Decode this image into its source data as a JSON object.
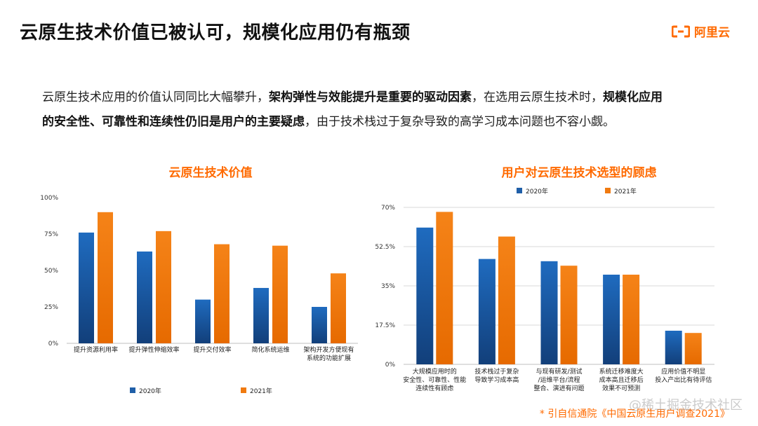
{
  "header": {
    "title": "云原生技术价值已被认可，规模化应用仍有瓶颈",
    "logo_text": "阿里云"
  },
  "intro": {
    "part1": "云原生技术应用的价值认同同比大幅攀升，",
    "bold1": "架构弹性与效能提升是重要的驱动因素",
    "part2": "，在选用云原生技术时，",
    "bold2": "规模化应用的安全性、可靠性和连续性仍旧是用户的主要疑虑",
    "part3": "，由于技术栈过于复杂导致的高学习成本问题也不容小觑。"
  },
  "colors": {
    "series2020": "#1f5fa8",
    "series2021": "#f07a10",
    "accent": "#ff6a00"
  },
  "chart_data": [
    {
      "type": "bar",
      "title": "云原生技术价值",
      "categories": [
        [
          "提升资源利用率"
        ],
        [
          "提升弹性伸缩效率"
        ],
        [
          "提升交付效率"
        ],
        [
          "简化系统运维"
        ],
        [
          "架构开发方便现有",
          "系统的功能扩展"
        ]
      ],
      "series": [
        {
          "name": "2020年",
          "values": [
            76,
            63,
            30,
            38,
            25
          ]
        },
        {
          "name": "2021年",
          "values": [
            90,
            77,
            68,
            67,
            48
          ]
        }
      ],
      "ylim": [
        0,
        100
      ],
      "yticks": [
        0,
        25,
        50,
        75,
        100
      ],
      "ytick_labels": [
        "0%",
        "25%",
        "50%",
        "75%",
        "100%"
      ],
      "legend": "bottom",
      "grid": false
    },
    {
      "type": "bar",
      "title": "用户对云原生技术选型的顾虑",
      "categories": [
        [
          "大规模应用时的",
          "安全性、可靠性、性能",
          "连续性有顾虑"
        ],
        [
          "技术栈过于复杂",
          "导致学习成本高"
        ],
        [
          "与现有研发/测试",
          "/运维平台/流程",
          "整合、演进有问题"
        ],
        [
          "系统迁移难度大",
          "成本高且迁移后",
          "效果不可预测"
        ],
        [
          "应用价值不明显",
          "投入产出比有待评估"
        ]
      ],
      "series": [
        {
          "name": "2020年",
          "values": [
            61,
            47,
            46,
            40,
            15
          ]
        },
        {
          "name": "2021年",
          "values": [
            68,
            57,
            44,
            40,
            14
          ]
        }
      ],
      "ylim": [
        0,
        70
      ],
      "yticks": [
        0,
        17.5,
        35,
        52.5,
        70
      ],
      "ytick_labels": [
        "0%",
        "17.5%",
        "35%",
        "52.5%",
        "70%"
      ],
      "legend": "top",
      "grid": true
    }
  ],
  "footer": {
    "source": "*  引自信通院《中国云原生用户调查2021》",
    "watermark": "@稀土掘金技术社区"
  }
}
